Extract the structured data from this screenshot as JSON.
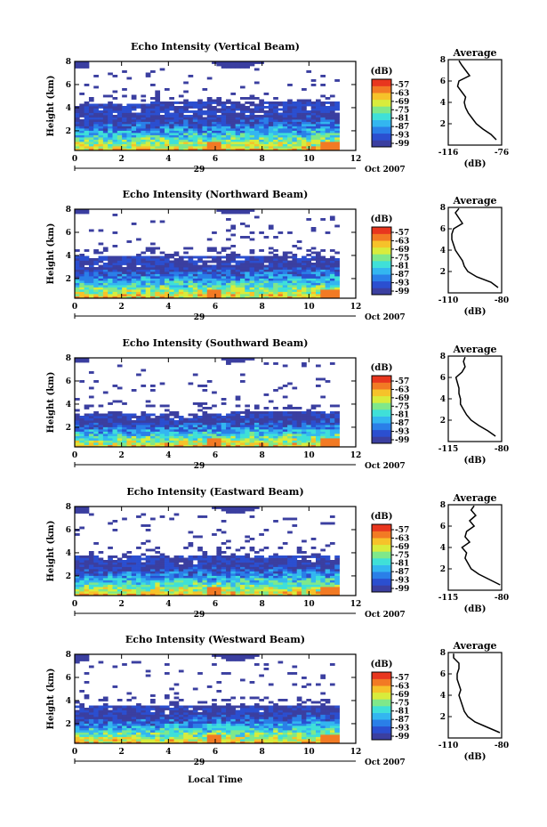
{
  "figure": {
    "x_axis_title": "Local Time",
    "date_label": "Oct 2007",
    "date_day": "29",
    "colorbar_unit": "(dB)",
    "avg_title": "Average",
    "avg_xlabel": "(dB)"
  },
  "chart_data": [
    {
      "type": "heatmap",
      "title": "Echo Intensity (Vertical Beam)",
      "xlabel": "",
      "ylabel": "Height (km)",
      "x_ticks": [
        "0",
        "2",
        "4",
        "6",
        "8",
        "10",
        "12"
      ],
      "y_ticks": [
        "2",
        "4",
        "6",
        "8"
      ],
      "xlim": [
        0,
        12
      ],
      "ylim": [
        0.3,
        8
      ],
      "colorbar_ticks": [
        "-57",
        "-63",
        "-69",
        "-75",
        "-81",
        "-87",
        "-93",
        "-99"
      ],
      "colorbar_range": [
        -99,
        -57
      ],
      "data_x_range": [
        0,
        11.3
      ],
      "layers": {
        "surface_top": 2.9,
        "low_top": 4.3,
        "mid_top": 5.1,
        "upper_base": 7.3
      },
      "average_profile": {
        "xlim": [
          -116,
          -76
        ],
        "x_ticks": [
          "-116",
          "-76"
        ],
        "ylim": [
          0,
          8
        ],
        "y_ticks": [
          "2",
          "4",
          "6",
          "8"
        ],
        "height": [
          0.5,
          1.0,
          1.5,
          2.0,
          2.5,
          3.0,
          3.5,
          4.0,
          4.5,
          5.0,
          5.5,
          6.0,
          6.5,
          7.0,
          7.5,
          7.9
        ],
        "value": [
          -80,
          -84,
          -90,
          -95,
          -98,
          -101,
          -103,
          -104,
          -103,
          -106,
          -109,
          -108,
          -100,
          -103,
          -106,
          -108
        ]
      }
    },
    {
      "type": "heatmap",
      "title": "Echo Intensity (Northward Beam)",
      "xlabel": "",
      "ylabel": "Height (km)",
      "x_ticks": [
        "0",
        "2",
        "4",
        "6",
        "8",
        "10",
        "12"
      ],
      "y_ticks": [
        "2",
        "4",
        "6",
        "8"
      ],
      "xlim": [
        0,
        12
      ],
      "ylim": [
        0.3,
        8
      ],
      "colorbar_ticks": [
        "-57",
        "-63",
        "-69",
        "-75",
        "-81",
        "-87",
        "-93",
        "-99"
      ],
      "colorbar_range": [
        -99,
        -57
      ],
      "data_x_range": [
        0,
        11.3
      ],
      "layers": {
        "surface_top": 2.8,
        "low_top": 3.8,
        "mid_top": 4.6,
        "upper_base": 7.5
      },
      "average_profile": {
        "xlim": [
          -110,
          -80
        ],
        "x_ticks": [
          "-110",
          "-80"
        ],
        "ylim": [
          0,
          8
        ],
        "y_ticks": [
          "2",
          "4",
          "6",
          "8"
        ],
        "height": [
          0.5,
          1.0,
          1.5,
          2.0,
          2.5,
          3.0,
          3.5,
          4.0,
          4.5,
          5.0,
          5.5,
          6.0,
          6.5,
          7.0,
          7.5,
          7.9
        ],
        "value": [
          -82,
          -86,
          -94,
          -99,
          -101,
          -102,
          -104,
          -106,
          -107,
          -108,
          -108,
          -107,
          -102,
          -104,
          -106,
          -104
        ]
      }
    },
    {
      "type": "heatmap",
      "title": "Echo Intensity (Southward Beam)",
      "xlabel": "",
      "ylabel": "Height (km)",
      "x_ticks": [
        "0",
        "2",
        "4",
        "6",
        "8",
        "10",
        "12"
      ],
      "y_ticks": [
        "2",
        "4",
        "6",
        "8"
      ],
      "xlim": [
        0,
        12
      ],
      "ylim": [
        0.3,
        8
      ],
      "colorbar_ticks": [
        "-57",
        "-63",
        "-69",
        "-75",
        "-81",
        "-87",
        "-93",
        "-99"
      ],
      "colorbar_range": [
        -99,
        -57
      ],
      "data_x_range": [
        0,
        11.3
      ],
      "layers": {
        "surface_top": 2.4,
        "low_top": 3.1,
        "mid_top": 3.8,
        "upper_base": 7.6
      },
      "average_profile": {
        "xlim": [
          -115,
          -80
        ],
        "x_ticks": [
          "-115",
          "-80"
        ],
        "ylim": [
          0,
          8
        ],
        "y_ticks": [
          "2",
          "4",
          "6",
          "8"
        ],
        "height": [
          0.5,
          1.0,
          1.5,
          2.0,
          2.5,
          3.0,
          3.5,
          4.0,
          4.5,
          5.0,
          5.5,
          6.0,
          6.5,
          7.0,
          7.5,
          7.9
        ],
        "value": [
          -84,
          -89,
          -95,
          -100,
          -103,
          -105,
          -107,
          -107,
          -108,
          -108,
          -109,
          -110,
          -106,
          -104,
          -105,
          -104
        ]
      }
    },
    {
      "type": "heatmap",
      "title": "Echo Intensity (Eastward Beam)",
      "xlabel": "",
      "ylabel": "Height (km)",
      "x_ticks": [
        "0",
        "2",
        "4",
        "6",
        "8",
        "10",
        "12"
      ],
      "y_ticks": [
        "2",
        "4",
        "6",
        "8"
      ],
      "xlim": [
        0,
        12
      ],
      "ylim": [
        0.3,
        8
      ],
      "colorbar_ticks": [
        "-57",
        "-63",
        "-69",
        "-75",
        "-81",
        "-87",
        "-93",
        "-99"
      ],
      "colorbar_range": [
        -99,
        -57
      ],
      "data_x_range": [
        0,
        11.3
      ],
      "layers": {
        "surface_top": 2.7,
        "low_top": 3.6,
        "mid_top": 4.4,
        "upper_base": 7.4
      },
      "average_profile": {
        "xlim": [
          -115,
          -80
        ],
        "x_ticks": [
          "-115",
          "-80"
        ],
        "ylim": [
          0,
          8
        ],
        "y_ticks": [
          "2",
          "4",
          "6",
          "8"
        ],
        "height": [
          0.5,
          1.0,
          1.5,
          2.0,
          2.5,
          3.0,
          3.5,
          4.0,
          4.5,
          5.0,
          5.5,
          6.0,
          6.5,
          7.0,
          7.5,
          7.9
        ],
        "value": [
          -81,
          -88,
          -95,
          -100,
          -102,
          -104,
          -103,
          -106,
          -101,
          -104,
          -103,
          -98,
          -101,
          -97,
          -100,
          -98
        ]
      }
    },
    {
      "type": "heatmap",
      "title": "Echo Intensity (Westward Beam)",
      "xlabel": "",
      "ylabel": "Height (km)",
      "x_ticks": [
        "0",
        "2",
        "4",
        "6",
        "8",
        "10",
        "12"
      ],
      "y_ticks": [
        "2",
        "4",
        "6",
        "8"
      ],
      "xlim": [
        0,
        12
      ],
      "ylim": [
        0.3,
        8
      ],
      "colorbar_ticks": [
        "-57",
        "-63",
        "-69",
        "-75",
        "-81",
        "-87",
        "-93",
        "-99"
      ],
      "colorbar_range": [
        -99,
        -57
      ],
      "data_x_range": [
        0,
        11.3
      ],
      "layers": {
        "surface_top": 2.6,
        "low_top": 3.4,
        "mid_top": 4.2,
        "upper_base": 7.4
      },
      "average_profile": {
        "xlim": [
          -110,
          -80
        ],
        "x_ticks": [
          "-110",
          "-80"
        ],
        "ylim": [
          0,
          8
        ],
        "y_ticks": [
          "2",
          "4",
          "6",
          "8"
        ],
        "height": [
          0.5,
          1.0,
          1.5,
          2.0,
          2.5,
          3.0,
          3.5,
          4.0,
          4.5,
          5.0,
          5.5,
          6.0,
          6.5,
          7.0,
          7.5,
          7.9
        ],
        "value": [
          -81,
          -88,
          -95,
          -99,
          -101,
          -102,
          -103,
          -104,
          -103,
          -104,
          -105,
          -105,
          -104,
          -104,
          -107,
          -107
        ]
      }
    }
  ]
}
